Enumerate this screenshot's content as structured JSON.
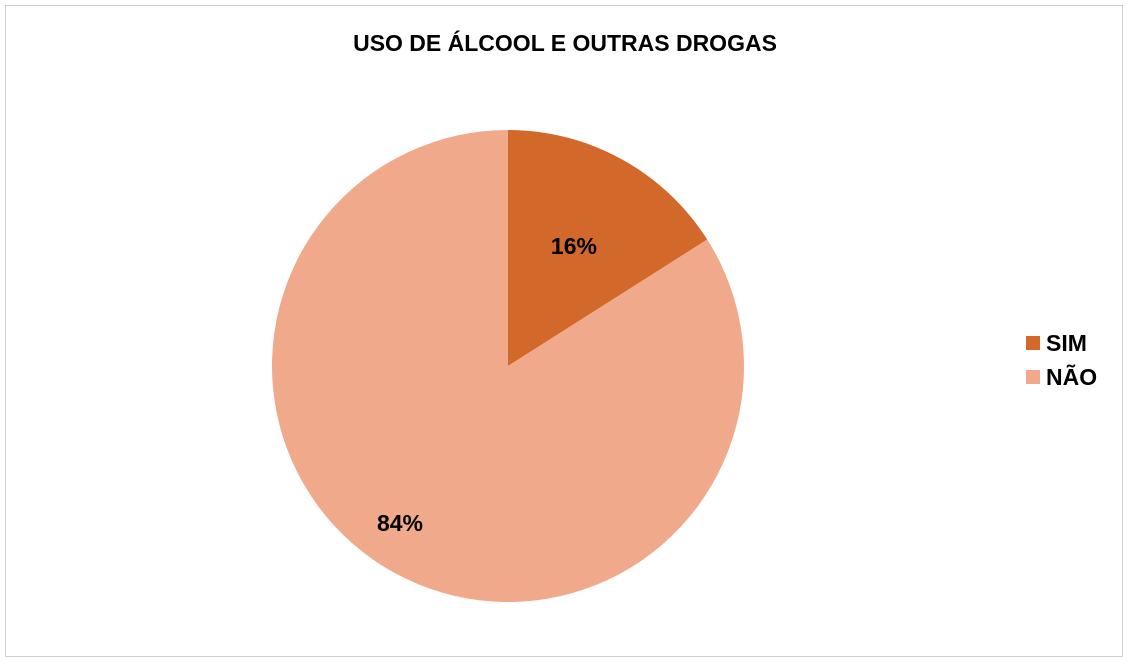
{
  "chart_data": {
    "type": "pie",
    "title": "USO DE ÁLCOOL E OUTRAS DROGAS",
    "categories": [
      "SIM",
      "NÃO"
    ],
    "values": [
      16,
      84
    ],
    "data_labels": [
      "16%",
      "84%"
    ],
    "colors": [
      "#D2692A",
      "#F0A98A"
    ],
    "legend_position": "right"
  }
}
